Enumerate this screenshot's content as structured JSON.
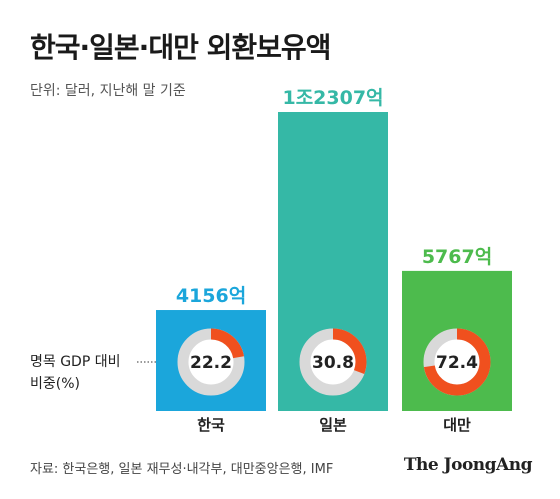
{
  "title": "한국·일본·대만 외환보유액",
  "unit_note": "단위: 달러, 지난해 말 기준",
  "gdp_label_line1": "명목 GDP 대비",
  "gdp_label_line2": "비중(%)",
  "source": "자료: 한국은행, 일본 재무성·내각부, 대만중앙은행, IMF",
  "logo": "The JoongAng",
  "colors": {
    "korea": "#1BA6DB",
    "japan": "#35B8A6",
    "taiwan": "#4DBB4D",
    "ring_bg": "#D9D9D9",
    "ring_fill": "#F0501E",
    "korea_label": "#1BA6DB",
    "japan_label": "#35B8A6",
    "taiwan_label": "#4DBB4D"
  },
  "chart_data": {
    "type": "bar",
    "title": "한국·일본·대만 외환보유액",
    "unit": "단위: 달러, 지난해 말 기준",
    "categories": [
      "한국",
      "일본",
      "대만"
    ],
    "values_label": [
      "4156억",
      "1조2307억",
      "5767억"
    ],
    "values": [
      4156,
      12307,
      5767
    ],
    "gdp_ratio_label": "명목 GDP 대비 비중(%)",
    "gdp_ratio": [
      22.2,
      30.8,
      72.4
    ],
    "gdp_ratio_text": [
      "22.2",
      "30.8",
      "72.4"
    ]
  }
}
